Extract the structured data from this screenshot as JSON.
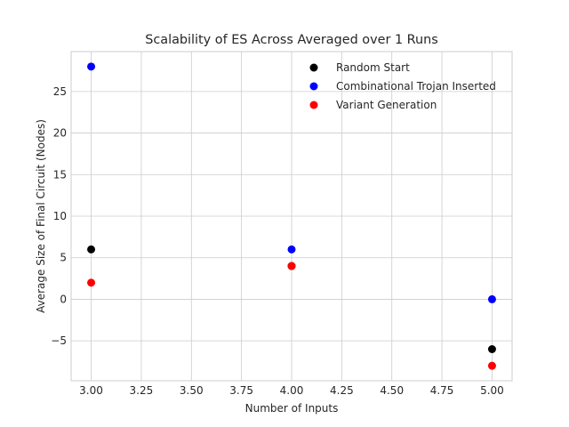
{
  "chart_data": {
    "type": "scatter",
    "title": "Scalability of ES Across Averaged over 1 Runs",
    "xlabel": "Number of Inputs",
    "ylabel": "Average Size of Final Circuit (Nodes)",
    "xlim": [
      2.9,
      5.1
    ],
    "ylim": [
      -9.8,
      29.8
    ],
    "xticks": [
      3.0,
      3.25,
      3.5,
      3.75,
      4.0,
      4.25,
      4.5,
      4.75,
      5.0
    ],
    "xtick_labels": [
      "3.00",
      "3.25",
      "3.50",
      "3.75",
      "4.00",
      "4.25",
      "4.50",
      "4.75",
      "5.00"
    ],
    "yticks": [
      -5,
      0,
      5,
      10,
      15,
      20,
      25
    ],
    "ytick_labels": [
      "−5",
      "0",
      "5",
      "10",
      "15",
      "20",
      "25"
    ],
    "grid": true,
    "legend_position": "top-right",
    "series": [
      {
        "name": "Random Start",
        "color": "#000000",
        "x": [
          3,
          4,
          5
        ],
        "y": [
          6,
          4,
          -6
        ]
      },
      {
        "name": "Combinational Trojan Inserted",
        "color": "#0000ff",
        "x": [
          3,
          4,
          5
        ],
        "y": [
          28,
          6,
          0
        ]
      },
      {
        "name": "Variant Generation",
        "color": "#ff0000",
        "x": [
          3,
          4,
          5
        ],
        "y": [
          2,
          4,
          -8
        ]
      }
    ]
  }
}
